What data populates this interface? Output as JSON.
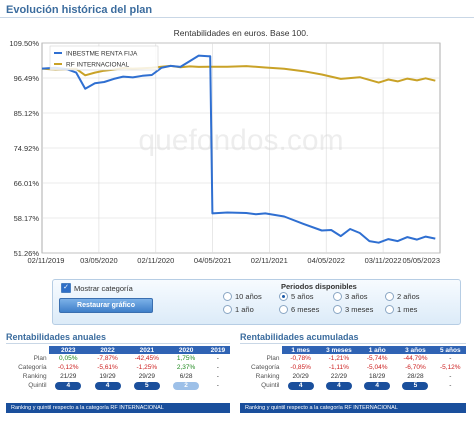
{
  "page": {
    "title": "Evolución histórica del plan",
    "watermark": "quefondos.com"
  },
  "chart_data": {
    "type": "line",
    "title": "Rentabilidades en euros. Base 100.",
    "y_ticks": [
      "109.50%",
      "96.49%",
      "85.12%",
      "74.92%",
      "66.01%",
      "58.17%",
      "51.26%"
    ],
    "y_tick_values": [
      109.5,
      96.49,
      85.12,
      74.92,
      66.01,
      58.17,
      51.26
    ],
    "ylim": [
      51.26,
      109.5
    ],
    "x_ticks": [
      "02/11/2019",
      "03/05/2020",
      "02/11/2020",
      "04/05/2021",
      "02/11/2021",
      "04/05/2022",
      "03/11/2022",
      "05/05/2023"
    ],
    "x_tick_dates": [
      "2019-11-02",
      "2020-05-03",
      "2020-11-02",
      "2021-05-04",
      "2021-11-02",
      "2022-05-04",
      "2022-11-03",
      "2023-05-05"
    ],
    "xlim": [
      "2019-11-02",
      "2023-05-05"
    ],
    "legend_position": "top-left",
    "grid": true,
    "series": [
      {
        "name": "INBESTME RENTA FIJA",
        "color": "#2f6fd1",
        "points": [
          [
            "2019-11-02",
            100.0
          ],
          [
            "2019-12-15",
            100.3
          ],
          [
            "2020-01-20",
            99.8
          ],
          [
            "2020-02-20",
            98.5
          ],
          [
            "2020-03-20",
            93.0
          ],
          [
            "2020-04-20",
            94.8
          ],
          [
            "2020-05-20",
            95.2
          ],
          [
            "2020-06-20",
            96.2
          ],
          [
            "2020-07-20",
            97.0
          ],
          [
            "2020-08-20",
            96.7
          ],
          [
            "2020-09-20",
            97.3
          ],
          [
            "2020-10-20",
            97.6
          ],
          [
            "2020-11-20",
            100.3
          ],
          [
            "2020-12-20",
            101.0
          ],
          [
            "2021-01-20",
            100.6
          ],
          [
            "2021-02-20",
            102.8
          ],
          [
            "2021-03-20",
            104.8
          ],
          [
            "2021-04-20",
            104.6
          ],
          [
            "2021-04-26",
            104.6
          ],
          [
            "2021-05-03",
            59.2
          ],
          [
            "2021-06-20",
            59.4
          ],
          [
            "2021-08-20",
            59.3
          ],
          [
            "2021-09-20",
            59.0
          ],
          [
            "2021-10-20",
            59.2
          ],
          [
            "2021-12-20",
            58.5
          ],
          [
            "2022-02-20",
            57.0
          ],
          [
            "2022-04-20",
            55.7
          ],
          [
            "2022-05-20",
            55.8
          ],
          [
            "2022-06-20",
            54.6
          ],
          [
            "2022-07-20",
            56.0
          ],
          [
            "2022-08-20",
            55.2
          ],
          [
            "2022-09-20",
            53.6
          ],
          [
            "2022-10-20",
            53.3
          ],
          [
            "2022-11-20",
            54.0
          ],
          [
            "2022-12-20",
            53.6
          ],
          [
            "2023-01-20",
            54.4
          ],
          [
            "2023-02-20",
            53.9
          ],
          [
            "2023-03-20",
            54.5
          ],
          [
            "2023-04-20",
            54.1
          ]
        ]
      },
      {
        "name": "RF INTERNACIONAL",
        "color": "#c9a227",
        "points": [
          [
            "2019-11-02",
            100.0
          ],
          [
            "2019-12-15",
            99.6
          ],
          [
            "2020-01-20",
            99.8
          ],
          [
            "2020-02-20",
            99.9
          ],
          [
            "2020-03-20",
            97.5
          ],
          [
            "2020-04-20",
            98.5
          ],
          [
            "2020-05-20",
            99.2
          ],
          [
            "2020-06-20",
            99.6
          ],
          [
            "2020-07-20",
            100.2
          ],
          [
            "2020-08-20",
            100.0
          ],
          [
            "2020-09-20",
            100.1
          ],
          [
            "2020-10-20",
            100.3
          ],
          [
            "2020-11-20",
            100.7
          ],
          [
            "2020-12-20",
            101.0
          ],
          [
            "2021-01-20",
            100.5
          ],
          [
            "2021-02-20",
            100.8
          ],
          [
            "2021-03-20",
            100.6
          ],
          [
            "2021-04-20",
            100.7
          ],
          [
            "2021-06-20",
            100.7
          ],
          [
            "2021-08-20",
            100.9
          ],
          [
            "2021-10-20",
            100.4
          ],
          [
            "2021-12-20",
            99.9
          ],
          [
            "2022-02-20",
            99.0
          ],
          [
            "2022-04-20",
            97.8
          ],
          [
            "2022-06-20",
            96.2
          ],
          [
            "2022-08-20",
            96.8
          ],
          [
            "2022-10-20",
            95.0
          ],
          [
            "2022-11-20",
            96.0
          ],
          [
            "2022-12-20",
            95.4
          ],
          [
            "2023-01-20",
            96.3
          ],
          [
            "2023-02-20",
            95.7
          ],
          [
            "2023-03-20",
            96.4
          ],
          [
            "2023-04-20",
            95.6
          ]
        ]
      }
    ]
  },
  "controls": {
    "show_category_label": "Mostrar categoría",
    "show_category_checked": true,
    "restore_label": "Restaurar gráfico",
    "periods_title": "Periodos disponibles",
    "periods": [
      {
        "label": "10 años",
        "selected": false
      },
      {
        "label": "5 años",
        "selected": true
      },
      {
        "label": "3 años",
        "selected": false
      },
      {
        "label": "2 años",
        "selected": false
      },
      {
        "label": "1 año",
        "selected": false
      },
      {
        "label": "6 meses",
        "selected": false
      },
      {
        "label": "3 meses",
        "selected": false
      },
      {
        "label": "1 mes",
        "selected": false
      }
    ]
  },
  "annual": {
    "title": "Rentabilidades anuales",
    "columns": [
      "2023",
      "2022",
      "2021",
      "2020",
      "2019"
    ],
    "rows": {
      "plan": {
        "label": "Plan",
        "values": [
          "0,05%",
          "-7,87%",
          "-42,45%",
          "1,75%",
          "-"
        ]
      },
      "categoria": {
        "label": "Categoría",
        "values": [
          "-0,12%",
          "-5,61%",
          "-1,25%",
          "2,37%",
          "-"
        ]
      },
      "ranking": {
        "label": "Ranking",
        "values": [
          "21/29",
          "19/29",
          "29/29",
          "6/28",
          "-"
        ]
      },
      "quintil": {
        "label": "Quintil",
        "values": [
          "4",
          "4",
          "5",
          "2",
          "-"
        ]
      }
    },
    "footer": "Ranking y quintil respecto a la categoría RF INTERNACIONAL"
  },
  "accumulated": {
    "title": "Rentabilidades acumuladas",
    "columns": [
      "1 mes",
      "3 meses",
      "1 año",
      "3 años",
      "5 años"
    ],
    "rows": {
      "plan": {
        "label": "Plan",
        "values": [
          "-0,78%",
          "-1,21%",
          "-5,74%",
          "-44,79%",
          "-"
        ]
      },
      "categoria": {
        "label": "Categoría",
        "values": [
          "-0,85%",
          "-1,11%",
          "-5,04%",
          "-6,70%",
          "-5,12%"
        ]
      },
      "ranking": {
        "label": "Ranking",
        "values": [
          "20/29",
          "22/29",
          "18/29",
          "28/28",
          "-"
        ]
      },
      "quintil": {
        "label": "Quintil",
        "values": [
          "4",
          "4",
          "4",
          "5",
          "-"
        ]
      }
    },
    "footer": "Ranking y quintil respecto a la categoría RF INTERNACIONAL"
  }
}
